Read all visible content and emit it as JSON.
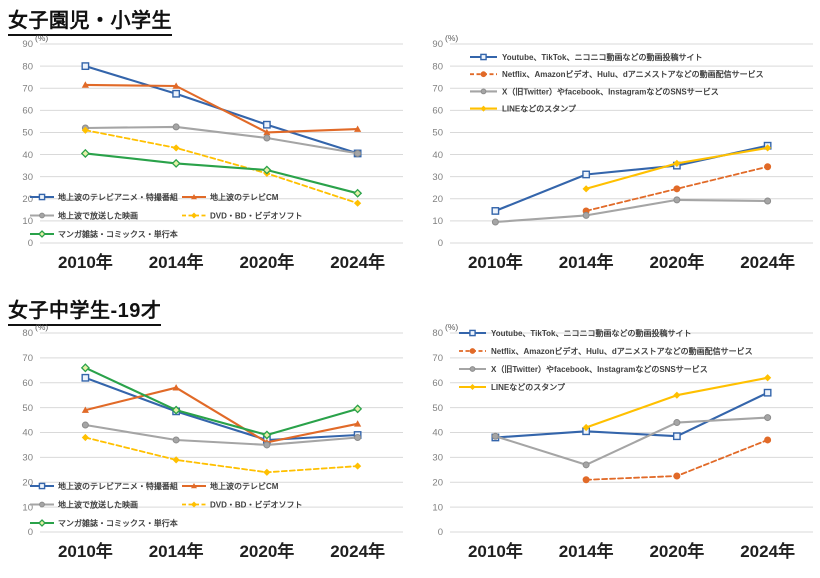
{
  "page": {
    "row1_title": "女子園児・小学生",
    "row2_title": "女子中学生-19才",
    "percent_label": "(%)"
  },
  "chart_data": [
    {
      "type": "line",
      "title": "女子園児・小学生 — 地上波・パッケージメディア",
      "categories": [
        "2010年",
        "2014年",
        "2020年",
        "2024年"
      ],
      "ylabel": "(%)",
      "ylim": [
        0,
        90
      ],
      "ytick_step": 10,
      "grid": true,
      "legend_position": "bottom-left",
      "series": [
        {
          "name": "地上波のテレビアニメ・特撮番組",
          "color": "#3465ab",
          "marker": "square-open",
          "dash": false,
          "values": [
            80,
            67.5,
            53.5,
            40.5
          ]
        },
        {
          "name": "地上波のテレビCM",
          "color": "#e16a28",
          "marker": "triangle",
          "dash": false,
          "values": [
            71.5,
            71,
            50,
            51.5
          ]
        },
        {
          "name": "地上波で放送した映画",
          "color": "#a5a5a5",
          "marker": "circle",
          "dash": false,
          "values": [
            52,
            52.5,
            47.5,
            40.5
          ]
        },
        {
          "name": "DVD・BD・ビデオソフト",
          "color": "#ffc000",
          "marker": "diamond",
          "dash": true,
          "values": [
            51,
            43,
            31.5,
            18
          ]
        },
        {
          "name": "マンガ雑誌・コミックス・単行本",
          "color": "#2aa24a",
          "marker": "diamond-open",
          "dash": false,
          "values": [
            40.5,
            36,
            33,
            22.5
          ]
        }
      ]
    },
    {
      "type": "line",
      "title": "女子園児・小学生 — ネット動画・SNSサービス",
      "categories": [
        "2010年",
        "2014年",
        "2020年",
        "2024年"
      ],
      "ylabel": "(%)",
      "ylim": [
        0,
        90
      ],
      "ytick_step": 10,
      "grid": true,
      "legend_position": "top-left",
      "series": [
        {
          "name": "Youtube、TikTok、ニコニコ動画などの動画投稿サイト",
          "color": "#3465ab",
          "marker": "square-open",
          "dash": false,
          "values": [
            14.5,
            31,
            35,
            44
          ]
        },
        {
          "name": "Netflix、Amazonビデオ、Hulu、dアニメストアなどの動画配信サービス",
          "color": "#e16a28",
          "marker": "circle",
          "dash": true,
          "values": [
            null,
            14.5,
            24.5,
            34.5
          ]
        },
        {
          "name": "X（旧Twitter）やfacebook、InstagramなどのSNSサービス",
          "color": "#a5a5a5",
          "marker": "circle",
          "dash": false,
          "values": [
            9.5,
            12.5,
            19.5,
            19
          ]
        },
        {
          "name": "LINEなどのスタンプ",
          "color": "#ffc000",
          "marker": "diamond",
          "dash": false,
          "values": [
            null,
            24.5,
            36,
            43
          ]
        }
      ]
    },
    {
      "type": "line",
      "title": "女子中学生-19才 — 地上波・パッケージメディア",
      "categories": [
        "2010年",
        "2014年",
        "2020年",
        "2024年"
      ],
      "ylabel": "(%)",
      "ylim": [
        0,
        80
      ],
      "ytick_step": 10,
      "grid": true,
      "legend_position": "bottom-left",
      "series": [
        {
          "name": "地上波のテレビアニメ・特撮番組",
          "color": "#3465ab",
          "marker": "square-open",
          "dash": false,
          "values": [
            62,
            48.5,
            37,
            39
          ]
        },
        {
          "name": "地上波のテレビCM",
          "color": "#e16a28",
          "marker": "triangle",
          "dash": false,
          "values": [
            49,
            58,
            36,
            43.5
          ]
        },
        {
          "name": "地上波で放送した映画",
          "color": "#a5a5a5",
          "marker": "circle",
          "dash": false,
          "values": [
            43,
            37,
            35,
            38
          ]
        },
        {
          "name": "DVD・BD・ビデオソフト",
          "color": "#ffc000",
          "marker": "diamond",
          "dash": true,
          "values": [
            38,
            29,
            24,
            26.5
          ]
        },
        {
          "name": "マンガ雑誌・コミックス・単行本",
          "color": "#2aa24a",
          "marker": "diamond-open",
          "dash": false,
          "values": [
            66,
            49,
            39,
            49.5
          ]
        }
      ]
    },
    {
      "type": "line",
      "title": "女子中学生-19才 — ネット動画・SNSサービス",
      "categories": [
        "2010年",
        "2014年",
        "2020年",
        "2024年"
      ],
      "ylabel": "(%)",
      "ylim": [
        0,
        80
      ],
      "ytick_step": 10,
      "grid": true,
      "legend_position": "top-left",
      "series": [
        {
          "name": "Youtube、TikTok、ニコニコ動画などの動画投稿サイト",
          "color": "#3465ab",
          "marker": "square-open",
          "dash": false,
          "values": [
            38,
            40.5,
            38.5,
            56
          ]
        },
        {
          "name": "Netflix、Amazonビデオ、Hulu、dアニメストアなどの動画配信サービス",
          "color": "#e16a28",
          "marker": "circle",
          "dash": true,
          "values": [
            null,
            21,
            22.5,
            37
          ]
        },
        {
          "name": "X（旧Twitter）やfacebook、InstagramなどのSNSサービス",
          "color": "#a5a5a5",
          "marker": "circle",
          "dash": false,
          "values": [
            38.5,
            27,
            44,
            46
          ]
        },
        {
          "name": "LINEなどのスタンプ",
          "color": "#ffc000",
          "marker": "diamond",
          "dash": false,
          "values": [
            null,
            42,
            55,
            62
          ]
        }
      ]
    }
  ]
}
